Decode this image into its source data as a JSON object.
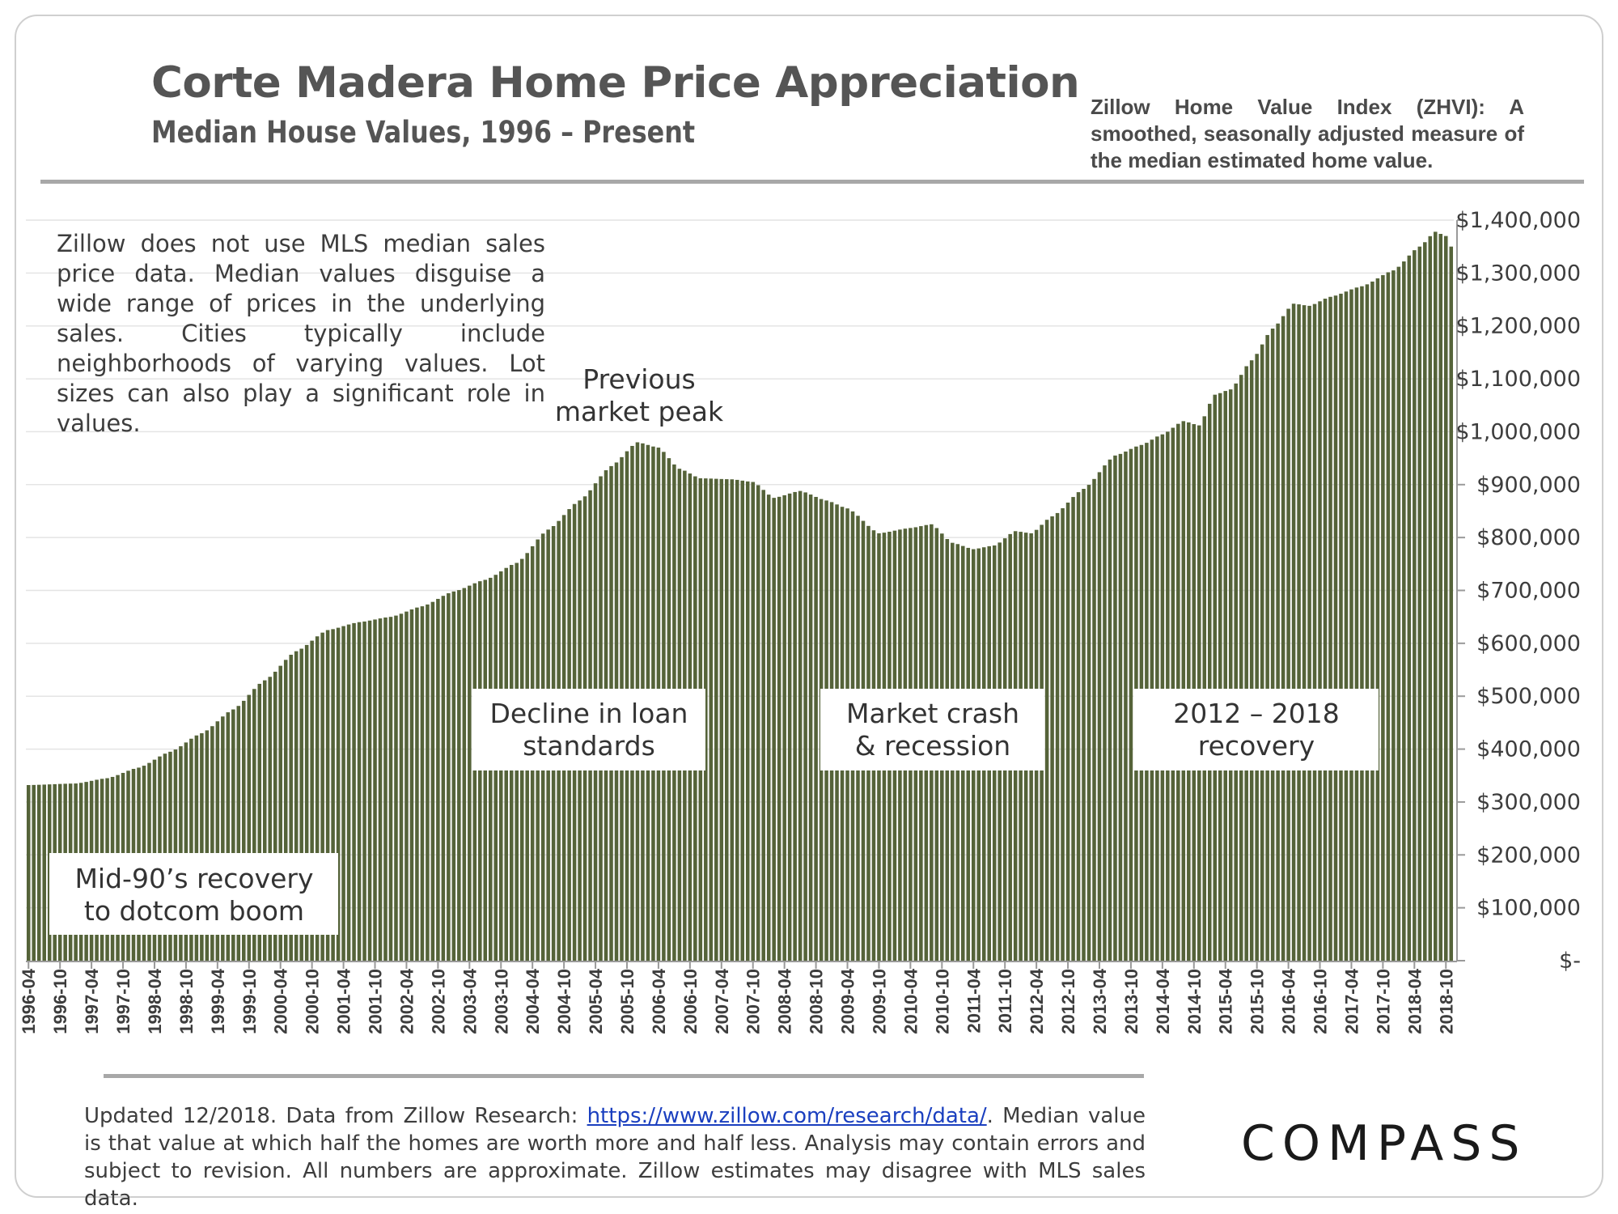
{
  "header": {
    "title": "Corte Madera Home Price Appreciation",
    "subtitle": "Median House Values, 1996 – Present",
    "zhvi_note": "Zillow Home Value Index (ZHVI): A smoothed, seasonally adjusted measure of the median estimated home value."
  },
  "disclaimer": "Zillow does not use MLS median sales price data. Median values disguise a wide range of prices in the underlying sales. Cities typically include neighborhoods of varying values. Lot sizes can also play a significant role in values.",
  "footer": {
    "text_before": "Updated 12/2018. Data from Zillow Research: ",
    "link": "https://www.zillow.com/research/data/",
    "text_after": ". Median value is that value at which half the homes are worth more and half less. Analysis may contain errors and subject to revision. All numbers are approximate. Zillow estimates may disagree with MLS sales data."
  },
  "logo": "COMPASS",
  "colors": {
    "bar": "#556339",
    "text": "#3d3d3d",
    "rule": "#a8a8a8",
    "link": "#1a3fbf"
  },
  "chart_data": {
    "type": "bar",
    "title": "Corte Madera Home Price Appreciation",
    "subtitle": "Median House Values, 1996 – Present",
    "xlabel": "",
    "ylabel": "",
    "ylim": [
      0,
      1400000
    ],
    "y_ticks": [
      0,
      100000,
      200000,
      300000,
      400000,
      500000,
      600000,
      700000,
      800000,
      900000,
      1000000,
      1100000,
      1200000,
      1300000,
      1400000
    ],
    "y_tick_labels": [
      "$-",
      "$100,000",
      "$200,000",
      "$300,000",
      "$400,000",
      "$500,000",
      "$600,000",
      "$700,000",
      "$800,000",
      "$900,000",
      "$1,000,000",
      "$1,100,000",
      "$1,200,000",
      "$1,300,000",
      "$1,400,000"
    ],
    "x_tick_labels": [
      "1996-04",
      "1996-10",
      "1997-04",
      "1997-10",
      "1998-04",
      "1998-10",
      "1999-04",
      "1999-10",
      "2000-04",
      "2000-10",
      "2001-04",
      "2001-10",
      "2002-04",
      "2002-10",
      "2003-04",
      "2003-10",
      "2004-04",
      "2004-10",
      "2005-04",
      "2005-10",
      "2006-04",
      "2006-10",
      "2007-04",
      "2007-10",
      "2008-04",
      "2008-10",
      "2009-04",
      "2009-10",
      "2010-04",
      "2010-10",
      "2011-04",
      "2011-10",
      "2012-04",
      "2012-10",
      "2013-04",
      "2013-10",
      "2014-04",
      "2014-10",
      "2015-04",
      "2015-10",
      "2016-04",
      "2016-10",
      "2017-04",
      "2017-10",
      "2018-04",
      "2018-10"
    ],
    "start_month": "1996-04",
    "end_month": "2018-11",
    "monthly_values_anchors": [
      [
        "1996-04",
        332000
      ],
      [
        "1997-01",
        335000
      ],
      [
        "1997-07",
        345000
      ],
      [
        "1998-01",
        365000
      ],
      [
        "1998-07",
        395000
      ],
      [
        "1999-01",
        430000
      ],
      [
        "1999-07",
        475000
      ],
      [
        "2000-01",
        530000
      ],
      [
        "2000-07",
        585000
      ],
      [
        "2001-01",
        625000
      ],
      [
        "2001-07",
        640000
      ],
      [
        "2002-01",
        650000
      ],
      [
        "2002-07",
        670000
      ],
      [
        "2003-01",
        698000
      ],
      [
        "2003-07",
        720000
      ],
      [
        "2004-01",
        752000
      ],
      [
        "2004-07",
        815000
      ],
      [
        "2005-01",
        870000
      ],
      [
        "2005-07",
        935000
      ],
      [
        "2005-12",
        980000
      ],
      [
        "2006-04",
        970000
      ],
      [
        "2006-08",
        930000
      ],
      [
        "2006-12",
        912000
      ],
      [
        "2007-06",
        910000
      ],
      [
        "2007-10",
        905000
      ],
      [
        "2008-02",
        875000
      ],
      [
        "2008-07",
        888000
      ],
      [
        "2008-12",
        870000
      ],
      [
        "2009-04",
        855000
      ],
      [
        "2009-10",
        808000
      ],
      [
        "2010-04",
        818000
      ],
      [
        "2010-08",
        825000
      ],
      [
        "2010-12",
        790000
      ],
      [
        "2011-04",
        778000
      ],
      [
        "2011-08",
        785000
      ],
      [
        "2011-12",
        812000
      ],
      [
        "2012-03",
        808000
      ],
      [
        "2012-07",
        840000
      ],
      [
        "2013-01",
        892000
      ],
      [
        "2013-07",
        955000
      ],
      [
        "2013-12",
        975000
      ],
      [
        "2014-04",
        995000
      ],
      [
        "2014-08",
        1020000
      ],
      [
        "2014-11",
        1012000
      ],
      [
        "2015-02",
        1070000
      ],
      [
        "2015-05",
        1080000
      ],
      [
        "2015-09",
        1135000
      ],
      [
        "2016-01",
        1195000
      ],
      [
        "2016-05",
        1242000
      ],
      [
        "2016-08",
        1238000
      ],
      [
        "2016-12",
        1255000
      ],
      [
        "2017-06",
        1275000
      ],
      [
        "2017-12",
        1305000
      ],
      [
        "2018-05",
        1350000
      ],
      [
        "2018-08",
        1378000
      ],
      [
        "2018-10",
        1370000
      ],
      [
        "2018-11",
        1350000
      ]
    ],
    "annotations": [
      {
        "id": "peak",
        "lines": [
          "Previous",
          "market peak"
        ]
      },
      {
        "id": "loan",
        "lines": [
          "Decline in loan",
          "standards"
        ]
      },
      {
        "id": "crash",
        "lines": [
          "Market crash",
          "& recession"
        ]
      },
      {
        "id": "recovery",
        "lines": [
          "2012 – 2018",
          "recovery"
        ]
      },
      {
        "id": "dotcom",
        "lines": [
          "Mid-90’s recovery",
          "to dotcom boom"
        ]
      }
    ]
  }
}
